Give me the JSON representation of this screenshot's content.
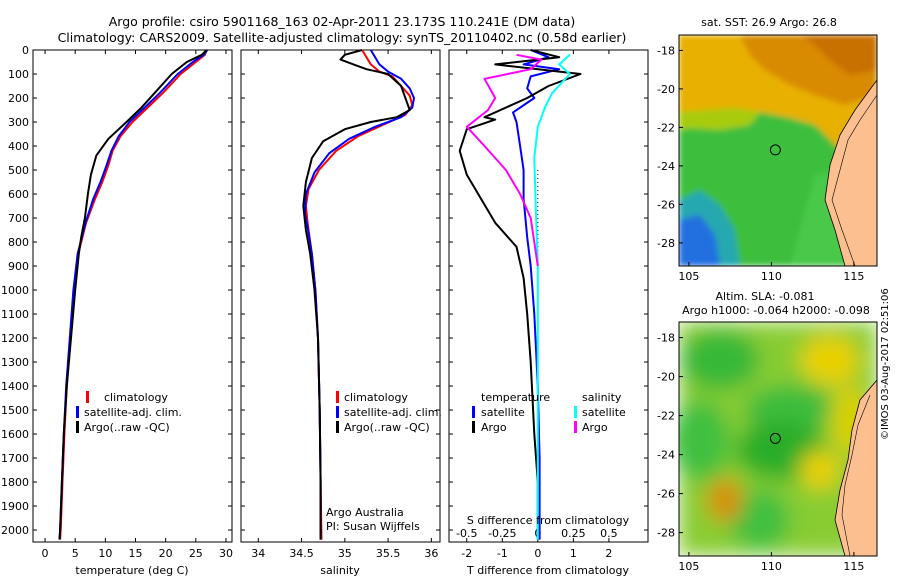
{
  "header": {
    "title_line1": "Argo profile: csiro 5901168_163 02-Apr-2011 23.173S 110.241E (DM data)",
    "title_line2": "Climatology: CARS2009. Satellite-adjusted climatology: synTS_20110402.nc (0.58d earlier)"
  },
  "credits": {
    "org": "Argo Australia",
    "pi": "PI: Susan Wijffels",
    "timestamp": "©IMOS 03-Aug-2017 02:51:06"
  },
  "colors": {
    "climatology": "#ff0000",
    "satellite": "#0000ff",
    "argo": "#000000",
    "argo_s": "#ff00ff",
    "sat_s": "#00ffff"
  },
  "chart_data": [
    {
      "type": "line",
      "id": "temperature",
      "xlabel": "temperature (deg C)",
      "xlim": [
        -2,
        31
      ],
      "ylim": [
        0,
        2050
      ],
      "xticks": [
        0,
        5,
        10,
        15,
        20,
        25,
        30
      ],
      "yticks": [
        0,
        100,
        200,
        300,
        400,
        500,
        600,
        700,
        800,
        900,
        1000,
        1100,
        1200,
        1300,
        1400,
        1500,
        1600,
        1700,
        1800,
        1900,
        2000
      ],
      "legend": [
        "climatology",
        "satellite-adj. clim.",
        "Argo(..raw -QC)"
      ],
      "series": [
        {
          "name": "climatology",
          "color": "#ff0000",
          "points": [
            [
              26.8,
              0
            ],
            [
              26.5,
              20
            ],
            [
              25,
              50
            ],
            [
              22.5,
              100
            ],
            [
              19.5,
              180
            ],
            [
              17,
              240
            ],
            [
              14.5,
              300
            ],
            [
              12.5,
              360
            ],
            [
              11.2,
              420
            ],
            [
              10.5,
              480
            ],
            [
              9.5,
              550
            ],
            [
              8.3,
              620
            ],
            [
              6.8,
              720
            ],
            [
              5.5,
              850
            ],
            [
              4.8,
              1000
            ],
            [
              4.2,
              1200
            ],
            [
              3.6,
              1400
            ],
            [
              3.2,
              1600
            ],
            [
              2.9,
              1800
            ],
            [
              2.6,
              2000
            ],
            [
              2.5,
              2040
            ]
          ]
        },
        {
          "name": "satellite-adj. clim.",
          "color": "#0000ff",
          "points": [
            [
              26.9,
              0
            ],
            [
              26.3,
              20
            ],
            [
              24.5,
              50
            ],
            [
              22,
              100
            ],
            [
              19,
              180
            ],
            [
              16.5,
              240
            ],
            [
              14,
              300
            ],
            [
              12.2,
              360
            ],
            [
              11,
              420
            ],
            [
              10.2,
              480
            ],
            [
              9.2,
              550
            ],
            [
              8,
              620
            ],
            [
              6.7,
              720
            ],
            [
              5.4,
              850
            ],
            [
              4.7,
              1000
            ],
            [
              4.1,
              1200
            ],
            [
              3.5,
              1400
            ],
            [
              3.1,
              1600
            ],
            [
              2.8,
              1800
            ],
            [
              2.5,
              2000
            ],
            [
              2.4,
              2040
            ]
          ]
        },
        {
          "name": "Argo",
          "color": "#000000",
          "points": [
            [
              26.8,
              0
            ],
            [
              26,
              20
            ],
            [
              23.5,
              50
            ],
            [
              21,
              100
            ],
            [
              18.5,
              170
            ],
            [
              16,
              240
            ],
            [
              13.5,
              300
            ],
            [
              10.5,
              370
            ],
            [
              8.5,
              440
            ],
            [
              7.6,
              520
            ],
            [
              7.1,
              600
            ],
            [
              6.6,
              700
            ],
            [
              6,
              780
            ],
            [
              5.6,
              850
            ],
            [
              5,
              1000
            ],
            [
              4.3,
              1200
            ],
            [
              3.6,
              1400
            ],
            [
              3.1,
              1600
            ],
            [
              2.8,
              1800
            ],
            [
              2.5,
              2000
            ],
            [
              2.4,
              2040
            ]
          ]
        }
      ]
    },
    {
      "type": "line",
      "id": "salinity",
      "xlabel": "salinity",
      "xlim": [
        33.8,
        36.1
      ],
      "ylim": [
        0,
        2050
      ],
      "xticks": [
        34,
        34.5,
        35,
        35.5,
        36
      ],
      "legend": [
        "climatology",
        "satellite-adj. clim.",
        "Argo(..raw -QC)"
      ],
      "series": [
        {
          "name": "climatology",
          "color": "#ff0000",
          "points": [
            [
              35.2,
              0
            ],
            [
              35.3,
              60
            ],
            [
              35.4,
              90
            ],
            [
              35.55,
              110
            ],
            [
              35.65,
              150
            ],
            [
              35.75,
              190
            ],
            [
              35.78,
              230
            ],
            [
              35.7,
              270
            ],
            [
              35.45,
              310
            ],
            [
              35.15,
              360
            ],
            [
              34.9,
              420
            ],
            [
              34.7,
              500
            ],
            [
              34.58,
              580
            ],
            [
              34.55,
              650
            ],
            [
              34.57,
              720
            ],
            [
              34.62,
              850
            ],
            [
              34.66,
              1000
            ],
            [
              34.69,
              1200
            ],
            [
              34.71,
              1500
            ],
            [
              34.72,
              1800
            ],
            [
              34.73,
              2040
            ]
          ]
        },
        {
          "name": "satellite-adj. clim.",
          "color": "#0000ff",
          "points": [
            [
              35.3,
              0
            ],
            [
              35.4,
              60
            ],
            [
              35.5,
              90
            ],
            [
              35.65,
              120
            ],
            [
              35.75,
              160
            ],
            [
              35.8,
              200
            ],
            [
              35.78,
              240
            ],
            [
              35.65,
              280
            ],
            [
              35.35,
              320
            ],
            [
              35.05,
              370
            ],
            [
              34.82,
              430
            ],
            [
              34.65,
              510
            ],
            [
              34.55,
              600
            ],
            [
              34.54,
              680
            ],
            [
              34.57,
              740
            ],
            [
              34.62,
              850
            ],
            [
              34.66,
              1000
            ],
            [
              34.69,
              1200
            ],
            [
              34.71,
              1500
            ],
            [
              34.72,
              1800
            ],
            [
              34.72,
              2040
            ]
          ]
        },
        {
          "name": "Argo",
          "color": "#000000",
          "points": [
            [
              35.2,
              0
            ],
            [
              35.0,
              20
            ],
            [
              34.95,
              40
            ],
            [
              35.1,
              60
            ],
            [
              35.25,
              80
            ],
            [
              35.5,
              100
            ],
            [
              35.65,
              150
            ],
            [
              35.72,
              220
            ],
            [
              35.75,
              250
            ],
            [
              35.6,
              280
            ],
            [
              35.3,
              300
            ],
            [
              35.0,
              330
            ],
            [
              34.75,
              380
            ],
            [
              34.62,
              450
            ],
            [
              34.55,
              550
            ],
            [
              34.52,
              650
            ],
            [
              34.55,
              750
            ],
            [
              34.6,
              850
            ],
            [
              34.65,
              1000
            ],
            [
              34.69,
              1200
            ],
            [
              34.71,
              1500
            ],
            [
              34.72,
              1800
            ],
            [
              34.72,
              2040
            ]
          ]
        }
      ]
    },
    {
      "type": "line",
      "id": "difference",
      "xlabel": "T difference from climatology",
      "top_label": "S difference from climatology",
      "xlim": [
        -2.5,
        3.1
      ],
      "ylim": [
        0,
        2050
      ],
      "xticks": [
        -2,
        -1,
        0,
        1,
        2
      ],
      "s_ticks": [
        {
          "v": -0.5,
          "label": "-0.5"
        },
        {
          "v": -0.25,
          "label": "-0.25"
        },
        {
          "v": 0,
          "label": "0"
        },
        {
          "v": 0.25,
          "label": "0.25"
        },
        {
          "v": 0.5,
          "label": "0.5"
        }
      ],
      "legend": {
        "t_heading": "temperature",
        "s_heading": "salinity",
        "items": [
          "satellite",
          "Argo",
          "satellite",
          "Argo"
        ]
      },
      "series": [
        {
          "name": "T satellite",
          "color": "#0000ff",
          "points": [
            [
              -0.2,
              0
            ],
            [
              0.3,
              30
            ],
            [
              -0.4,
              60
            ],
            [
              0.6,
              80
            ],
            [
              -0.2,
              110
            ],
            [
              -0.3,
              160
            ],
            [
              -0.1,
              200
            ],
            [
              -0.7,
              260
            ],
            [
              -0.6,
              300
            ],
            [
              -0.5,
              400
            ],
            [
              -0.4,
              500
            ],
            [
              -0.4,
              620
            ],
            [
              -0.3,
              780
            ],
            [
              -0.2,
              900
            ],
            [
              -0.1,
              1100
            ],
            [
              0,
              1400
            ],
            [
              0.05,
              1700
            ],
            [
              0.05,
              2040
            ]
          ]
        },
        {
          "name": "T Argo",
          "color": "#000000",
          "points": [
            [
              -0.2,
              0
            ],
            [
              0.6,
              30
            ],
            [
              -1.2,
              60
            ],
            [
              1.2,
              100
            ],
            [
              0.3,
              150
            ],
            [
              -0.3,
              200
            ],
            [
              -1.5,
              280
            ],
            [
              -1.2,
              290
            ],
            [
              -2.0,
              330
            ],
            [
              -2.2,
              420
            ],
            [
              -2.0,
              520
            ],
            [
              -1.6,
              620
            ],
            [
              -1.2,
              720
            ],
            [
              -0.6,
              820
            ],
            [
              -0.4,
              950
            ],
            [
              -0.3,
              1100
            ],
            [
              -0.2,
              1300
            ],
            [
              -0.1,
              1600
            ],
            [
              0,
              1800
            ],
            [
              0,
              2040
            ]
          ]
        },
        {
          "name": "S satellite",
          "color": "#00ffff",
          "points": [
            [
              0.9,
              20
            ],
            [
              0.6,
              60
            ],
            [
              0.9,
              100
            ],
            [
              0.4,
              180
            ],
            [
              0.2,
              240
            ],
            [
              0,
              320
            ],
            [
              -0.1,
              450
            ],
            [
              -0.05,
              700
            ],
            [
              0,
              900
            ],
            [
              0,
              2040
            ]
          ]
        },
        {
          "name": "S Argo",
          "color": "#ff00ff",
          "points": [
            [
              -0.6,
              20
            ],
            [
              0.1,
              40
            ],
            [
              -0.2,
              80
            ],
            [
              -1.5,
              120
            ],
            [
              -1.2,
              200
            ],
            [
              -1.4,
              250
            ],
            [
              -2.0,
              320
            ],
            [
              -1.5,
              400
            ],
            [
              -0.9,
              500
            ],
            [
              -0.5,
              600
            ],
            [
              -0.2,
              700
            ],
            [
              -0.1,
              800
            ],
            [
              0,
              900
            ]
          ]
        }
      ]
    },
    {
      "type": "heatmap",
      "id": "sst_map",
      "title": "sat. SST: 26.9 Argo: 26.8",
      "xticks": [
        105,
        110,
        115
      ],
      "yticks": [
        -18,
        -20,
        -22,
        -24,
        -26,
        -28
      ],
      "xlim": [
        104.4,
        116.4
      ],
      "ylim": [
        -29.2,
        -17.2
      ],
      "argo_position": [
        110.24,
        -23.17
      ]
    },
    {
      "type": "heatmap",
      "id": "sla_map",
      "title": "Altim. SLA: -0.081",
      "subtitle": "Argo h1000: -0.064 h2000: -0.098",
      "xticks": [
        105,
        110,
        115
      ],
      "yticks": [
        -18,
        -20,
        -22,
        -24,
        -26,
        -28
      ],
      "xlim": [
        104.4,
        116.4
      ],
      "ylim": [
        -29.2,
        -17.2
      ],
      "argo_position": [
        110.24,
        -23.17
      ]
    }
  ]
}
